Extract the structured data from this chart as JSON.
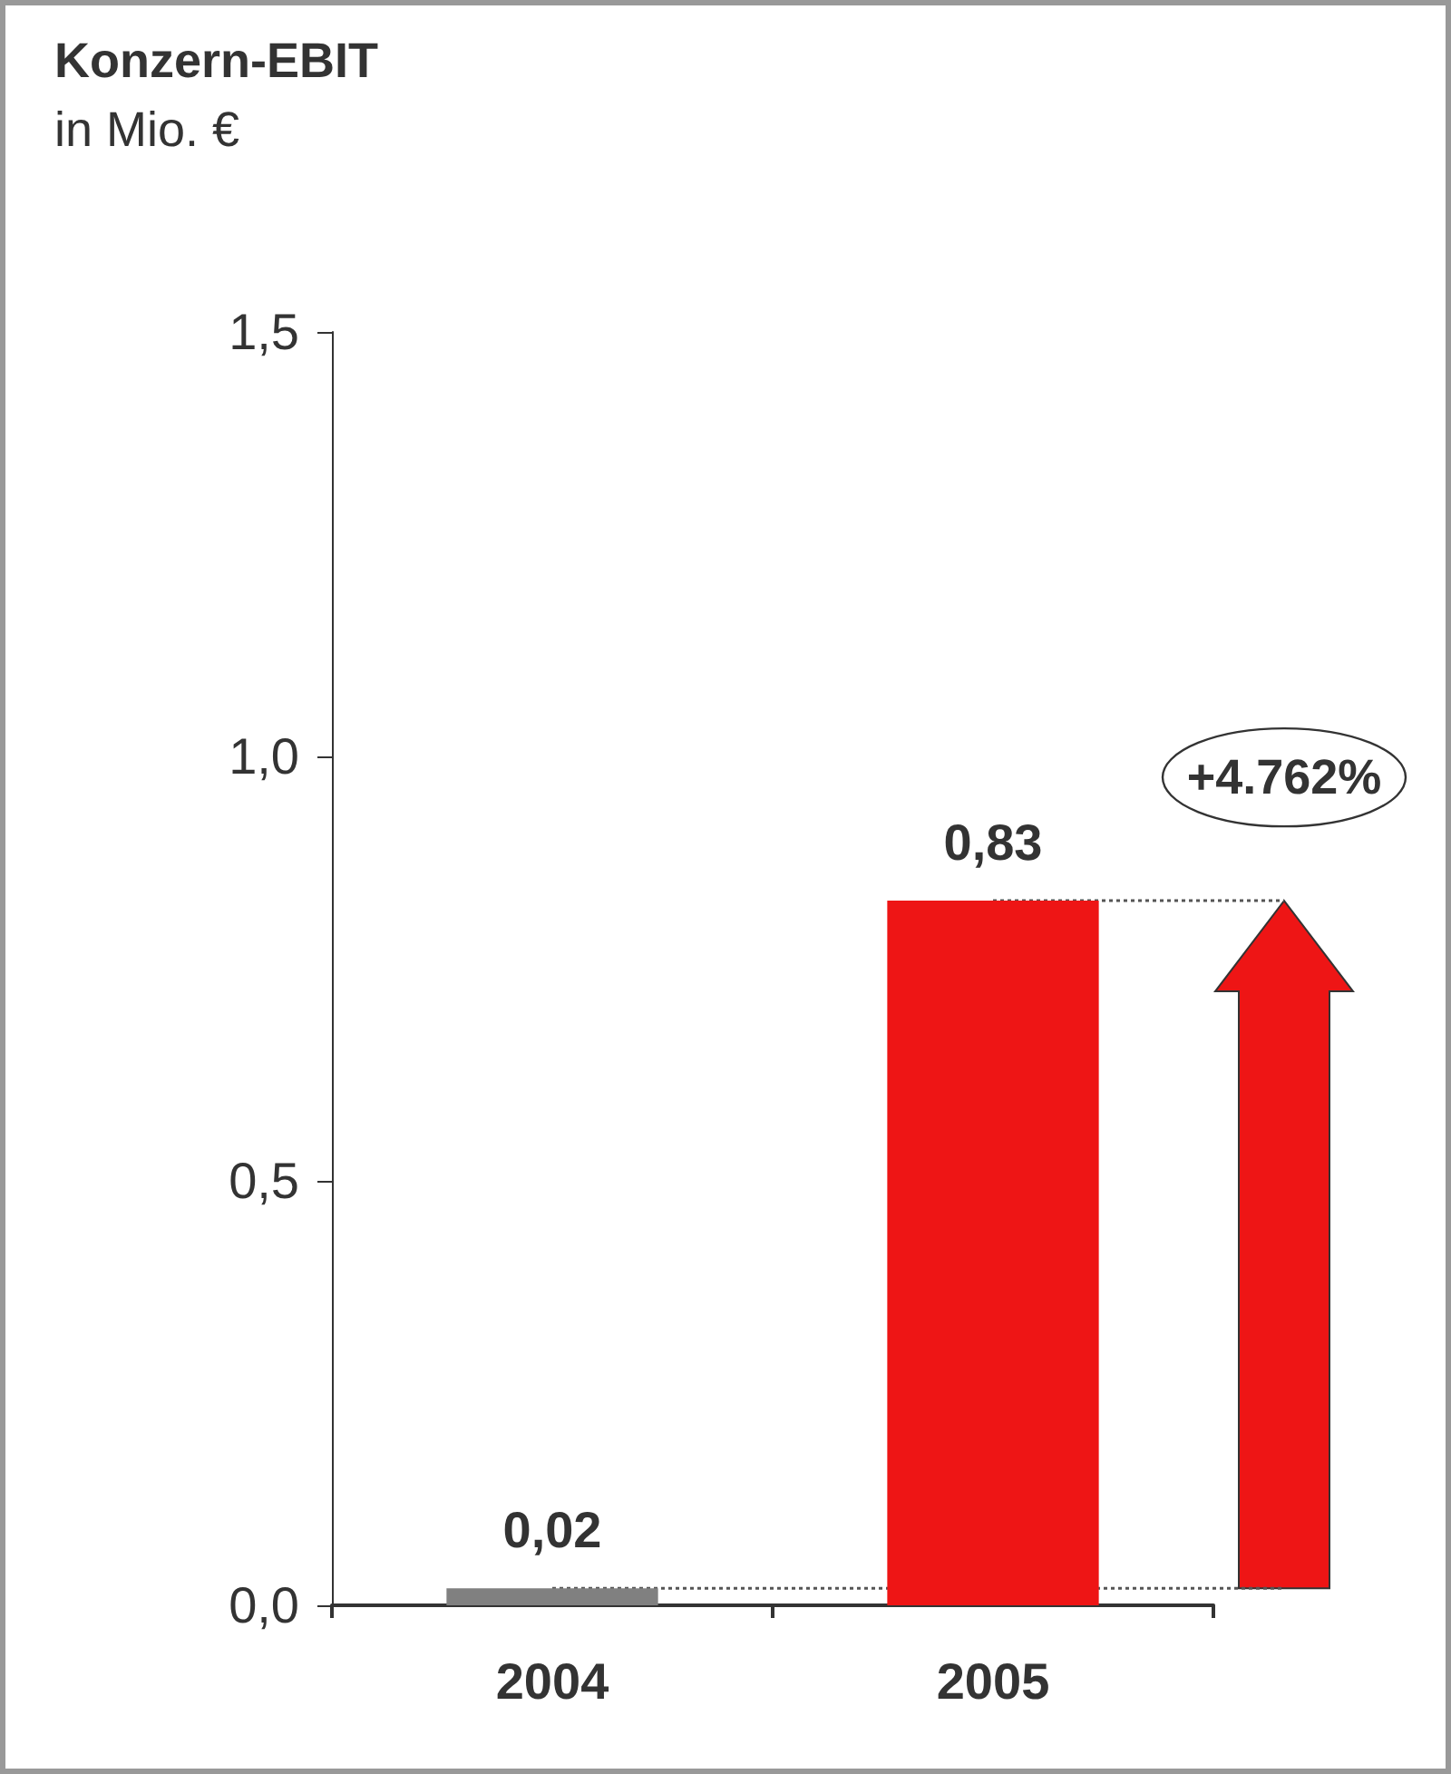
{
  "chart_data": {
    "type": "bar",
    "title": "Konzern-EBIT",
    "subtitle": "in Mio. €",
    "categories": [
      "2004",
      "2005"
    ],
    "values": [
      0.02,
      0.83
    ],
    "colors": [
      "#808080",
      "#ee1515"
    ],
    "value_labels": [
      "0,02",
      "0,83"
    ],
    "ylim": [
      0,
      1.5
    ],
    "yticks": [
      {
        "value": 0,
        "label": "0,0"
      },
      {
        "value": 0.5,
        "label": "0,5"
      },
      {
        "value": 1,
        "label": "1,0"
      },
      {
        "value": 1.5,
        "label": "1,5"
      }
    ],
    "ref_lines": [
      {
        "axis": "y",
        "value": 0.83,
        "line_style": "dotted",
        "color": "#555555"
      },
      {
        "axis": "y",
        "value": 0.02,
        "line_style": "dotted",
        "color": "#555555"
      }
    ],
    "annotations": [
      "+4.762%"
    ],
    "grid": false
  }
}
